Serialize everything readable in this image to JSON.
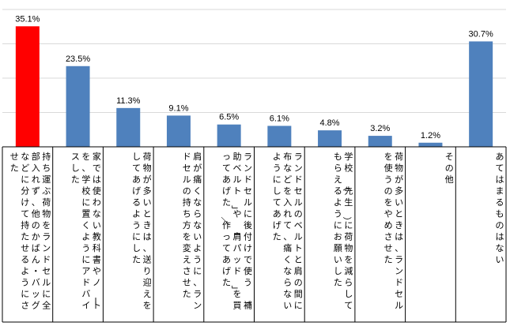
{
  "chart_data": {
    "type": "bar",
    "categories": [
      "持ち運ぶ荷物をランドセルに全部入れず、他のかばん・バッグなどに分けて持たせるようにさせた",
      "家では使わない教科書やノートを、学校に置くようにアドバイスした",
      "荷物が多いときは、送り迎えをしてあげるようにした",
      "肩が痛くならないように、ランドセルの持ち方を変えさせた",
      "ランドセルに後付けで使う「補助ベルト」や「肩パッド」を買ってあげた／作ってあげた",
      "ランドセルのベルトと肩の間に布などを入れて、痛くならないようにしてあげた",
      "学校（先生）に荷物を減らしてもらえるようにお願いした",
      "荷物が多いときは、ランドセルを使うのをやめさせた",
      "その他",
      "あてはまるものはない"
    ],
    "values": [
      35.1,
      23.5,
      11.3,
      9.1,
      6.5,
      6.1,
      4.8,
      3.2,
      1.2,
      30.7
    ],
    "value_labels": [
      "35.1%",
      "23.5%",
      "11.3%",
      "9.1%",
      "6.5%",
      "6.1%",
      "4.8%",
      "3.2%",
      "1.2%",
      "30.7%"
    ],
    "colors": [
      "#ff0000",
      "#4f81bd",
      "#4f81bd",
      "#4f81bd",
      "#4f81bd",
      "#4f81bd",
      "#4f81bd",
      "#4f81bd",
      "#4f81bd",
      "#4f81bd"
    ],
    "ylim": [
      0,
      40
    ],
    "gridlines": [
      10,
      20,
      30,
      40
    ],
    "grid": true,
    "title": "",
    "xlabel": "",
    "ylabel": ""
  }
}
